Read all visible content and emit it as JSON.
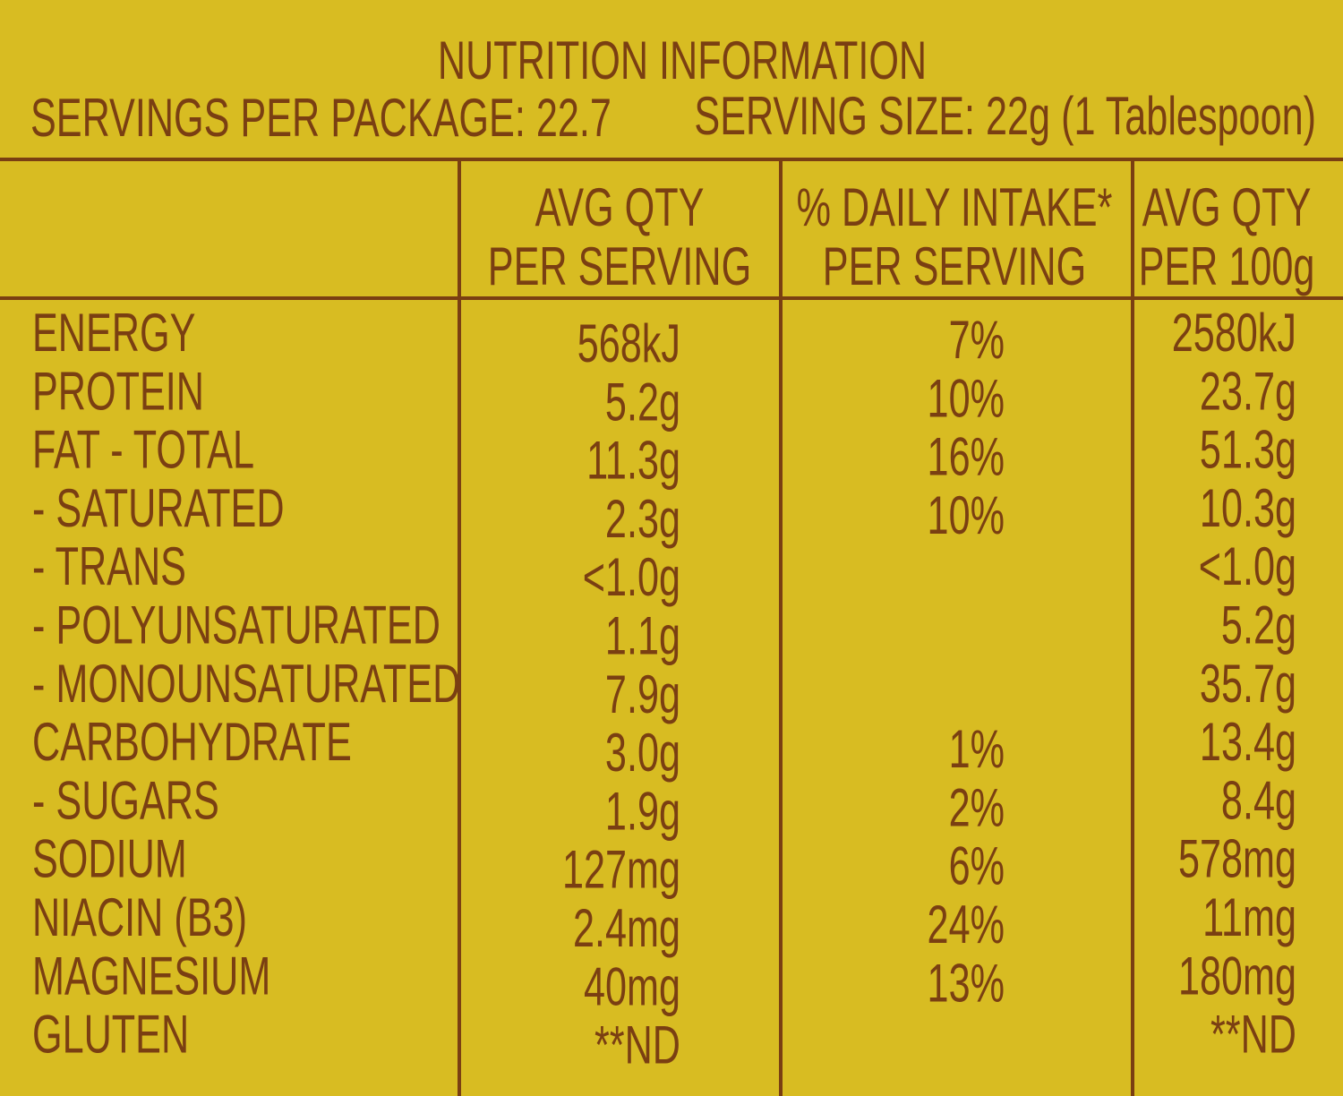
{
  "title": "NUTRITION INFORMATION",
  "servings_per_package": "SERVINGS PER PACKAGE: 22.7",
  "serving_size": "SERVING SIZE: 22g (1 Tablespoon)",
  "table": {
    "headers": [
      [
        "AVG QTY",
        "PER SERVING"
      ],
      [
        "% DAILY INTAKE*",
        "PER SERVING"
      ],
      [
        "AVG QTY",
        "PER 100g"
      ]
    ],
    "rows": [
      [
        "ENERGY",
        "568kJ",
        "7%",
        "2580kJ"
      ],
      [
        "PROTEIN",
        "5.2g",
        "10%",
        "23.7g"
      ],
      [
        "FAT - TOTAL",
        "11.3g",
        "16%",
        "51.3g"
      ],
      [
        "- SATURATED",
        "2.3g",
        "10%",
        "10.3g"
      ],
      [
        "- TRANS",
        "<1.0g",
        null,
        "<1.0g"
      ],
      [
        "- POLYUNSATURATED",
        "1.1g",
        null,
        "5.2g"
      ],
      [
        "- MONOUNSATURATED",
        "7.9g",
        null,
        "35.7g"
      ],
      [
        "CARBOHYDRATE",
        "3.0g",
        "1%",
        "13.4g"
      ],
      [
        "- SUGARS",
        "1.9g",
        "2%",
        "8.4g"
      ],
      [
        "SODIUM",
        "127mg",
        "6%",
        "578mg"
      ],
      [
        "NIACIN (B3)",
        "2.4mg",
        "24%",
        "11mg"
      ],
      [
        "MAGNESIUM",
        "40mg",
        "13%",
        "180mg"
      ],
      [
        "GLUTEN",
        "**ND",
        null,
        "**ND"
      ]
    ]
  }
}
